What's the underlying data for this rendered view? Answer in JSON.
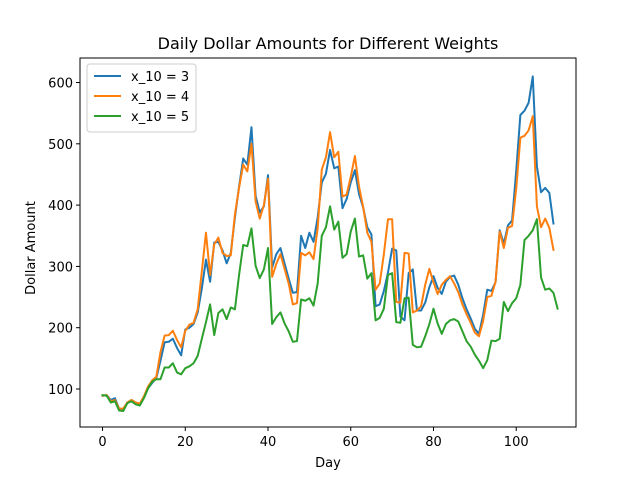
{
  "chart_data": {
    "type": "line",
    "title": "Daily Dollar Amounts for Different Weights",
    "xlabel": "Day",
    "ylabel": "Dollar Amount",
    "xlim": [
      -5.45,
      114.45
    ],
    "ylim": [
      38,
      640
    ],
    "xticks": [
      0,
      20,
      40,
      60,
      80,
      100
    ],
    "yticks": [
      100,
      200,
      300,
      400,
      500,
      600
    ],
    "grid": false,
    "legend_position": "top-left",
    "series": [
      {
        "name": "x_10 = 3",
        "color": "#1f77b4",
        "values": [
          89,
          90,
          82,
          85,
          68,
          67,
          78,
          82,
          78,
          76,
          87,
          101,
          110,
          118,
          146,
          176,
          177,
          182,
          167,
          155,
          197,
          200,
          206,
          225,
          264,
          311,
          275,
          339,
          340,
          326,
          305,
          322,
          380,
          430,
          476,
          466,
          527,
          415,
          388,
          398,
          449,
          298,
          320,
          330,
          305,
          280,
          257,
          258,
          350,
          330,
          355,
          340,
          380,
          437,
          451,
          490,
          460,
          463,
          395,
          410,
          437,
          457,
          418,
          396,
          364,
          352,
          235,
          238,
          260,
          290,
          329,
          326,
          218,
          212,
          289,
          295,
          228,
          228,
          241,
          266,
          284,
          265,
          255,
          275,
          283,
          285,
          270,
          248,
          230,
          215,
          198,
          190,
          221,
          262,
          260,
          274,
          359,
          337,
          367,
          375,
          456,
          547,
          554,
          567,
          610,
          463,
          421,
          428,
          420,
          370
        ]
      },
      {
        "name": "x_10 = 4",
        "color": "#ff7f0e",
        "values": [
          89,
          90,
          80,
          82,
          68,
          68,
          78,
          82,
          78,
          76,
          88,
          104,
          114,
          120,
          160,
          187,
          188,
          195,
          180,
          168,
          195,
          205,
          208,
          230,
          292,
          355,
          286,
          336,
          347,
          322,
          317,
          318,
          385,
          428,
          466,
          455,
          500,
          406,
          378,
          400,
          443,
          283,
          304,
          320,
          296,
          272,
          238,
          240,
          322,
          318,
          323,
          312,
          362,
          458,
          478,
          519,
          478,
          487,
          414,
          417,
          446,
          480,
          430,
          397,
          355,
          340,
          262,
          272,
          320,
          377,
          377,
          242,
          241,
          322,
          321,
          225,
          228,
          235,
          270,
          296,
          274,
          255,
          270,
          278,
          284,
          272,
          258,
          238,
          222,
          208,
          192,
          186,
          211,
          250,
          252,
          275,
          357,
          330,
          363,
          366,
          427,
          510,
          513,
          522,
          545,
          398,
          364,
          378,
          363,
          327
        ]
      },
      {
        "name": "x_10 = 5",
        "color": "#2ca02c",
        "values": [
          90,
          89,
          78,
          80,
          65,
          64,
          77,
          80,
          75,
          73,
          85,
          101,
          112,
          116,
          116,
          135,
          135,
          142,
          127,
          124,
          134,
          137,
          142,
          154,
          182,
          209,
          238,
          188,
          224,
          230,
          214,
          233,
          230,
          286,
          335,
          333,
          362,
          301,
          281,
          295,
          330,
          206,
          217,
          225,
          207,
          194,
          177,
          178,
          246,
          244,
          248,
          236,
          272,
          350,
          364,
          398,
          360,
          373,
          314,
          320,
          357,
          378,
          316,
          318,
          280,
          289,
          212,
          216,
          231,
          286,
          289,
          209,
          208,
          248,
          249,
          172,
          168,
          169,
          186,
          206,
          231,
          207,
          190,
          206,
          212,
          214,
          210,
          194,
          178,
          169,
          156,
          146,
          134,
          147,
          179,
          178,
          182,
          242,
          227,
          240,
          248,
          270,
          343,
          350,
          359,
          377,
          282,
          262,
          264,
          257,
          231
        ]
      }
    ]
  }
}
